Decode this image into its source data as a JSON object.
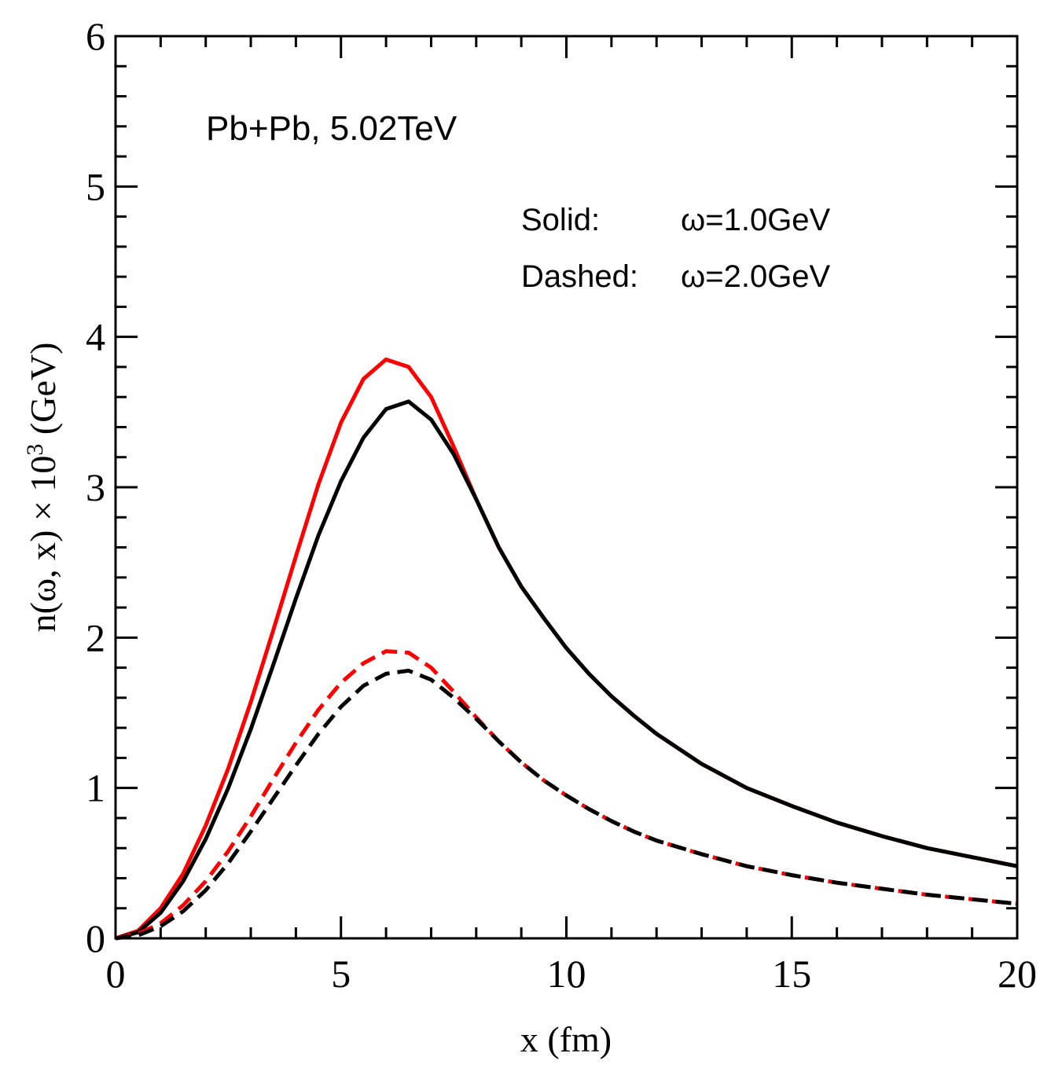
{
  "chart_data": {
    "type": "line",
    "xlabel": "x (fm)",
    "ylabel_main": "n(ω, x) × 10",
    "ylabel_exp": "3",
    "ylabel_unit": " (GeV)",
    "xlim": [
      0,
      20
    ],
    "ylim": [
      0,
      6
    ],
    "xticks": [
      0,
      5,
      10,
      15,
      20
    ],
    "yticks": [
      0,
      1,
      2,
      3,
      4,
      5,
      6
    ],
    "grid": false,
    "annotations": {
      "system": "Pb+Pb, 5.02TeV",
      "solid_label": "Solid:",
      "solid_value": "ω=1.0GeV",
      "dashed_label": "Dashed:",
      "dashed_value": "ω=2.0GeV"
    },
    "series": [
      {
        "color": "#ff0000",
        "dash": "solid",
        "x": [
          0,
          0.5,
          1,
          1.5,
          2,
          2.5,
          3,
          3.5,
          4,
          4.5,
          5,
          5.5,
          6,
          6.5,
          7,
          7.5,
          8,
          8.5,
          9,
          9.5,
          10,
          10.5,
          11,
          11.5,
          12,
          13,
          14,
          15,
          16,
          17,
          18,
          19,
          20
        ],
        "y": [
          0,
          0.05,
          0.2,
          0.43,
          0.75,
          1.13,
          1.57,
          2.05,
          2.54,
          3.02,
          3.43,
          3.72,
          3.85,
          3.8,
          3.6,
          3.27,
          2.92,
          2.6,
          2.34,
          2.13,
          1.93,
          1.76,
          1.61,
          1.48,
          1.36,
          1.16,
          1.0,
          0.88,
          0.77,
          0.68,
          0.6,
          0.54,
          0.48
        ]
      },
      {
        "color": "#000000",
        "dash": "solid",
        "x": [
          0,
          0.5,
          1,
          1.5,
          2,
          2.5,
          3,
          3.5,
          4,
          4.5,
          5,
          5.5,
          6,
          6.5,
          7,
          7.5,
          8,
          8.5,
          9,
          9.5,
          10,
          10.5,
          11,
          11.5,
          12,
          13,
          14,
          15,
          16,
          17,
          18,
          19,
          20
        ],
        "y": [
          0,
          0.04,
          0.17,
          0.38,
          0.66,
          1.0,
          1.39,
          1.82,
          2.26,
          2.68,
          3.04,
          3.33,
          3.52,
          3.57,
          3.45,
          3.22,
          2.92,
          2.6,
          2.34,
          2.13,
          1.93,
          1.76,
          1.61,
          1.48,
          1.36,
          1.16,
          1.0,
          0.88,
          0.77,
          0.68,
          0.6,
          0.54,
          0.48
        ]
      },
      {
        "color": "#ff0000",
        "dash": "dashed",
        "x": [
          0,
          0.5,
          1,
          1.5,
          2,
          2.5,
          3,
          3.5,
          4,
          4.5,
          5,
          5.5,
          6,
          6.5,
          7,
          7.5,
          8,
          8.5,
          9,
          9.5,
          10,
          10.5,
          11,
          11.5,
          12,
          13,
          14,
          15,
          16,
          17,
          18,
          19,
          20
        ],
        "y": [
          0,
          0.03,
          0.1,
          0.22,
          0.38,
          0.58,
          0.81,
          1.06,
          1.3,
          1.52,
          1.7,
          1.83,
          1.91,
          1.9,
          1.8,
          1.64,
          1.47,
          1.31,
          1.17,
          1.05,
          0.95,
          0.86,
          0.78,
          0.71,
          0.65,
          0.56,
          0.48,
          0.42,
          0.37,
          0.33,
          0.29,
          0.26,
          0.23
        ]
      },
      {
        "color": "#000000",
        "dash": "dashed",
        "x": [
          0,
          0.5,
          1,
          1.5,
          2,
          2.5,
          3,
          3.5,
          4,
          4.5,
          5,
          5.5,
          6,
          6.5,
          7,
          7.5,
          8,
          8.5,
          9,
          9.5,
          10,
          10.5,
          11,
          11.5,
          12,
          13,
          14,
          15,
          16,
          17,
          18,
          19,
          20
        ],
        "y": [
          0,
          0.02,
          0.08,
          0.18,
          0.32,
          0.5,
          0.71,
          0.93,
          1.15,
          1.36,
          1.54,
          1.68,
          1.76,
          1.78,
          1.72,
          1.6,
          1.46,
          1.31,
          1.17,
          1.05,
          0.95,
          0.86,
          0.78,
          0.71,
          0.65,
          0.56,
          0.48,
          0.42,
          0.37,
          0.33,
          0.29,
          0.26,
          0.23
        ]
      }
    ]
  }
}
